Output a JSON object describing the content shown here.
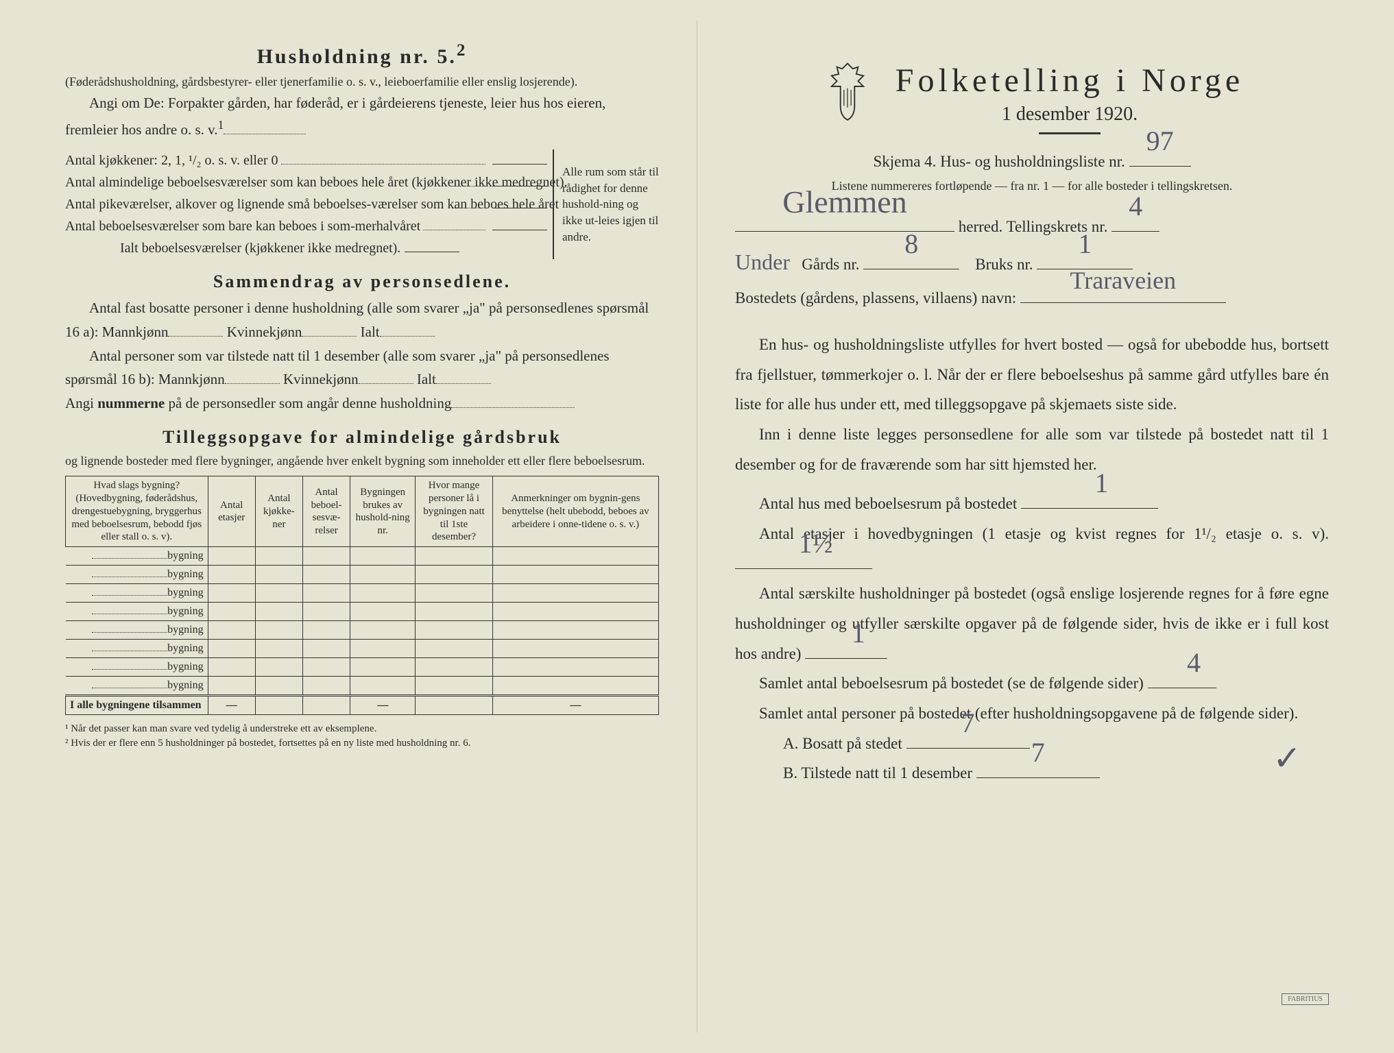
{
  "left": {
    "heading": "Husholdning nr. 5.",
    "heading_sup": "2",
    "para1": "(Føderådshusholdning, gårdsbestyrer- eller tjenerfamilie o. s. v., leieboerfamilie eller enslig losjerende).",
    "para2_a": "Angi om De: Forpakter gården, har føderåd, er i gårdeierens tjeneste, leier hus hos eieren, fremleier hos andre o. s. v.",
    "para2_sup": "1",
    "kitchens": "Antal kjøkkener: 2, 1, ¹/₂ o. s. v. eller 0",
    "rooms1": "Antal almindelige beboelsesværelser som kan beboes hele året (kjøkkener ikke medregnet).",
    "rooms2": "Antal pikeværelser, alkover og lignende små beboelses-værelser som kan beboes hele året",
    "rooms3": "Antal beboelsesværelser som bare kan beboes i som-merhalvåret",
    "rooms_total": "Ialt beboelsesværelser  (kjøkkener ikke medregnet).",
    "bracket_text": "Alle rum som står til rådighet for denne hushold-ning og ikke ut-leies igjen til andre.",
    "summary_heading": "Sammendrag av personsedlene.",
    "summary_p1": "Antal fast bosatte personer i denne husholdning (alle som svarer „ja\" på personsedlenes spørsmål 16 a): Mannkjønn",
    "kvinne": "Kvinnekjønn",
    "ialt": "Ialt",
    "summary_p2": "Antal personer som var tilstede natt til 1 desember (alle som svarer „ja\" på personsedlenes spørsmål 16 b): Mannkjønn",
    "summary_p3a": "Angi ",
    "summary_p3b": "nummerne",
    "summary_p3c": " på de personsedler som angår denne husholdning",
    "farm_heading": "Tilleggsopgave for almindelige gårdsbruk",
    "farm_sub": "og lignende bosteder med flere bygninger, angående hver enkelt bygning som inneholder ett eller flere beboelsesrum.",
    "table": {
      "headers": [
        "Hvad slags bygning?\n(Hovedbygning, føderådshus, drengestuebygning, bryggerhus med beboelsesrum, bebodd fjøs eller stall o. s. v).",
        "Antal etasjer",
        "Antal kjøkke-ner",
        "Antal beboel-sesvæ-relser",
        "Bygningen brukes av hushold-ning nr.",
        "Hvor mange personer lå i bygningen natt til 1ste desember?",
        "Anmerkninger om bygnin-gens benyttelse (helt ubebodd, beboes av arbeidere i onne-tidene o. s. v.)"
      ],
      "row_suffix": "bygning",
      "row_count": 8,
      "total_label": "I alle bygningene tilsammen",
      "dash": "—"
    },
    "footnote1": "¹  Når det passer kan man svare ved tydelig å understreke ett av eksemplene.",
    "footnote2": "²  Hvis der er flere enn 5 husholdninger på bostedet, fortsettes på en ny liste med husholdning nr. 6."
  },
  "right": {
    "title": "Folketelling  i  Norge",
    "subtitle": "1 desember 1920.",
    "schema_a": "Skjema 4.   Hus- og husholdningsliste nr.",
    "schema_val": "97",
    "note": "Listene nummereres fortløpende — fra nr. 1 — for alle bosteder i tellingskretsen.",
    "herred_val": "Glemmen",
    "herred_label": " herred.   Tellingskrets nr.",
    "krets_val": "4",
    "prefix_val": "Under",
    "gards_label": "Gårds nr.",
    "gards_val": "8",
    "bruks_label": "Bruks nr.",
    "bruks_val": "1",
    "bosted_label": "Bostedets (gårdens, plassens, villaens) navn:",
    "bosted_val": "Traraveien",
    "para1": "En hus- og husholdningsliste utfylles for hvert bosted — også for ubebodde hus, bortsett fra fjellstuer, tømmerkojer o. l.  Når der er flere beboelseshus på samme gård utfylles bare én liste for alle hus under ett, med tilleggsopgave på skjemaets siste side.",
    "para2": "Inn i denne liste legges personsedlene for alle som var tilstede på bostedet natt til 1 desember og for de fraværende som har sitt hjemsted her.",
    "q1": "Antal hus med beboelsesrum på bostedet",
    "q1_val": "1",
    "q2a": "Antal etasjer i hovedbygningen (1 etasje og kvist regnes for 1¹/₂ etasje o. s. v).",
    "q2_val": "1½",
    "q3": "Antal særskilte husholdninger på bostedet (også enslige losjerende regnes for å føre egne husholdninger og utfyller særskilte opgaver på de følgende sider, hvis de ikke er i full kost hos andre)",
    "q3_val": "1",
    "q4": "Samlet antal beboelsesrum på bostedet (se de følgende sider)",
    "q4_val": "4",
    "q5": "Samlet antal personer på bostedet (efter husholdningsopgavene på de følgende sider).",
    "qA": "A.   Bosatt på stedet",
    "qA_val": "7",
    "qB": "B.   Tilstede natt til 1 desember",
    "qB_val": "7",
    "colors": {
      "paper": "#e8e4d4",
      "ink": "#2a2a2a",
      "handwriting": "#5a5a6a"
    }
  }
}
